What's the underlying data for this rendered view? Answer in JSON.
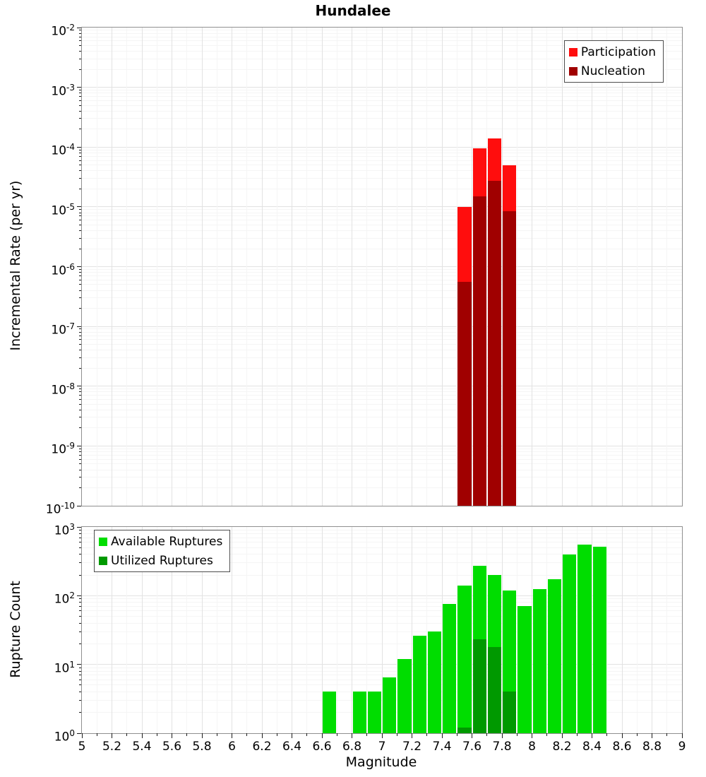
{
  "chart_data": [
    {
      "type": "bar",
      "title": "Hundalee",
      "ylabel": "Incremental Rate (per yr)",
      "yscale": "log",
      "ylim": [
        1e-10,
        0.01
      ],
      "ylim_exponents": [
        -10,
        -2
      ],
      "y_tick_exponents": [
        -2,
        -3,
        -4,
        -5,
        -6,
        -7,
        -8,
        -9,
        -10
      ],
      "xlim": [
        5,
        9
      ],
      "bin_width": 0.1,
      "grid": true,
      "legend_position": "top-right",
      "series": [
        {
          "name": "Participation",
          "color": "#ff0d0d",
          "x": [
            7.55,
            7.65,
            7.75,
            7.85
          ],
          "values": [
            1e-05,
            9.5e-05,
            0.00014,
            5e-05
          ]
        },
        {
          "name": "Nucleation",
          "color": "#a00000",
          "x": [
            7.55,
            7.65,
            7.75,
            7.85
          ],
          "values": [
            5.5e-07,
            1.5e-05,
            2.7e-05,
            8.5e-06
          ]
        }
      ]
    },
    {
      "type": "bar",
      "xlabel": "Magnitude",
      "ylabel": "Rupture Count",
      "yscale": "log",
      "ylim": [
        1,
        1000
      ],
      "ylim_exponents": [
        0,
        3
      ],
      "y_tick_exponents": [
        3,
        2,
        1,
        0
      ],
      "xlim": [
        5,
        9
      ],
      "x_tick_labels": [
        "5",
        "5.2",
        "5.4",
        "5.6",
        "5.8",
        "6",
        "6.2",
        "6.4",
        "6.6",
        "6.8",
        "7",
        "7.2",
        "7.4",
        "7.6",
        "7.8",
        "8",
        "8.2",
        "8.4",
        "8.6",
        "8.8",
        "9"
      ],
      "bin_width": 0.1,
      "grid": true,
      "legend_position": "top-left",
      "series": [
        {
          "name": "Available Ruptures",
          "color": "#00dd00",
          "x": [
            6.65,
            6.85,
            6.95,
            7.05,
            7.15,
            7.25,
            7.35,
            7.45,
            7.55,
            7.65,
            7.75,
            7.85,
            7.95,
            8.05,
            8.15,
            8.25,
            8.35,
            8.45
          ],
          "values": [
            4,
            4,
            4,
            6.5,
            12,
            26,
            30,
            75,
            140,
            270,
            200,
            120,
            70,
            125,
            175,
            400,
            550,
            510
          ]
        },
        {
          "name": "Utilized Ruptures",
          "color": "#009900",
          "x": [
            7.55,
            7.65,
            7.75,
            7.85
          ],
          "values": [
            1.2,
            23,
            18,
            4
          ]
        }
      ]
    }
  ]
}
